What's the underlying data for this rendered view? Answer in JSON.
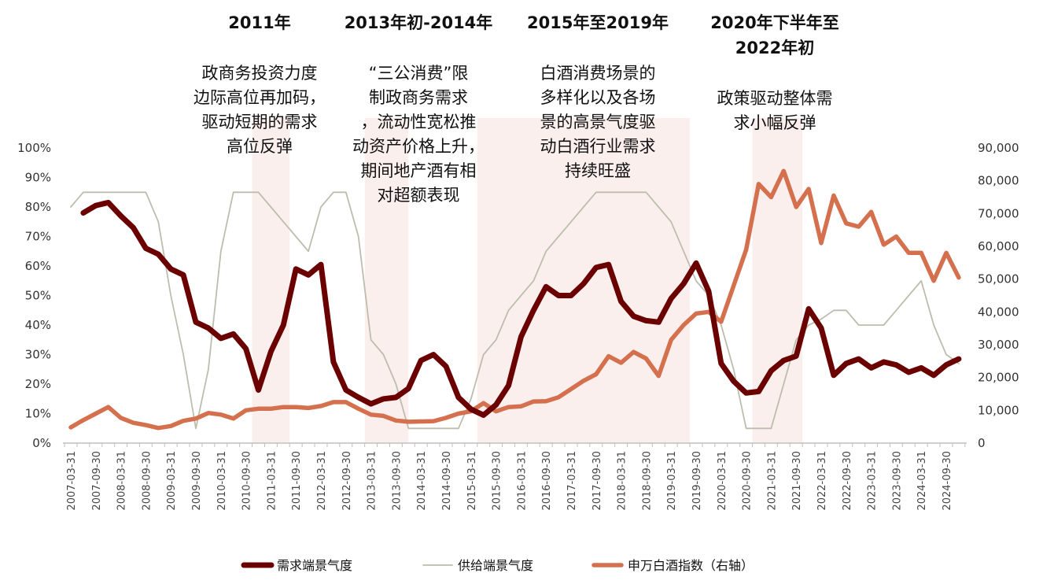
{
  "chart_data": {
    "type": "line",
    "title": "",
    "x_start": "2007-03-31",
    "x_frequency": "quarterly",
    "x_count": 72,
    "x_tick_labels": [
      "2007-03-31",
      "2007-09-30",
      "2008-03-31",
      "2008-09-30",
      "2009-03-31",
      "2009-09-30",
      "2010-03-31",
      "2010-09-30",
      "2011-03-31",
      "2011-09-30",
      "2012-03-31",
      "2012-09-30",
      "2013-03-31",
      "2013-09-30",
      "2014-03-31",
      "2014-09-30",
      "2015-03-31",
      "2015-09-30",
      "2016-03-31",
      "2016-09-30",
      "2017-03-31",
      "2017-09-30",
      "2018-03-31",
      "2018-09-30",
      "2019-03-31",
      "2019-09-30",
      "2020-03-31",
      "2020-09-30",
      "2021-03-31",
      "2021-09-30",
      "2022-03-31",
      "2022-09-30",
      "2023-03-31",
      "2023-09-30",
      "2024-03-31",
      "2024-09-30"
    ],
    "y_left": {
      "ylim": [
        0,
        100
      ],
      "tick_labels": [
        "0%",
        "10%",
        "20%",
        "30%",
        "40%",
        "50%",
        "60%",
        "70%",
        "80%",
        "90%",
        "100%"
      ]
    },
    "y_right": {
      "ylim": [
        0,
        90000
      ],
      "tick_labels": [
        "0",
        "10,000",
        "20,000",
        "30,000",
        "40,000",
        "50,000",
        "60,000",
        "70,000",
        "80,000",
        "90,000"
      ]
    },
    "grid": false,
    "legend_position": "bottom",
    "series": [
      {
        "name": "需求端景气度",
        "axis": "left",
        "color": "#6b0000",
        "values": [
          null,
          78,
          80.5,
          81.5,
          77,
          73,
          66,
          64,
          59,
          57,
          41,
          39,
          35.5,
          37,
          32,
          18,
          31,
          40,
          59,
          57,
          60.5,
          27.5,
          18,
          15.5,
          13.3,
          15,
          15.5,
          18.5,
          28,
          30,
          26,
          15.5,
          11.5,
          9.5,
          13,
          19.5,
          36,
          45,
          53,
          50,
          50,
          54,
          59.5,
          60.5,
          48,
          43,
          41.5,
          41,
          49,
          54,
          61,
          51.5,
          27,
          21,
          17,
          17.5,
          24.5,
          28,
          29.5,
          45.5,
          39,
          23,
          27,
          28.5,
          25.5,
          27.5,
          26.5,
          24,
          25.5,
          23,
          26.5,
          28.5
        ]
      },
      {
        "name": "供给端景气度",
        "axis": "left",
        "color": "#bdbdad",
        "values": [
          80,
          85,
          85,
          85,
          85,
          85,
          85,
          75,
          50,
          30,
          5,
          25,
          65,
          85,
          85,
          85,
          80,
          75,
          70,
          65,
          80,
          85,
          85,
          70,
          35,
          30,
          20,
          5,
          5,
          5,
          5,
          5,
          15,
          30,
          35,
          45,
          50,
          55,
          65,
          70,
          75,
          80,
          85,
          85,
          85,
          85,
          85,
          80,
          75,
          65,
          55,
          50,
          40,
          25,
          5,
          5,
          5,
          20,
          35,
          40,
          42,
          45,
          45,
          40,
          40,
          40,
          45,
          50,
          55,
          40,
          30,
          27
        ]
      },
      {
        "name": "申万白酒指数（右轴）",
        "axis": "right",
        "color": "#d4704e",
        "values": [
          4800,
          7000,
          9000,
          11000,
          7700,
          6200,
          5500,
          4600,
          5200,
          6800,
          7500,
          9200,
          8700,
          7500,
          10000,
          10500,
          10500,
          11000,
          11000,
          10700,
          11300,
          12500,
          12500,
          10500,
          8700,
          8300,
          6900,
          6500,
          6600,
          6700,
          7700,
          9000,
          9700,
          12200,
          9700,
          11000,
          11200,
          12700,
          12800,
          14000,
          16500,
          19000,
          21000,
          26500,
          24500,
          27800,
          25800,
          20500,
          31500,
          36000,
          39500,
          40000,
          37000,
          48000,
          59000,
          79000,
          75000,
          83000,
          72000,
          77500,
          61000,
          75500,
          67000,
          66000,
          70500,
          60500,
          63000,
          58000,
          58000,
          49500,
          58000,
          50500
        ]
      }
    ],
    "shaded_periods": [
      {
        "start_index": 15,
        "end_index": 17
      },
      {
        "start_index": 24,
        "end_index": 26.5
      },
      {
        "start_index": 33,
        "end_index": 49
      },
      {
        "start_index": 55,
        "end_index": 58
      }
    ],
    "annotations": [
      {
        "title": [
          "2011年"
        ],
        "body": [
          "政商务投资力度",
          "边际高位再加码，",
          "驱动短期的需求",
          "高位反弹"
        ]
      },
      {
        "title": [
          "2013年初-2014年"
        ],
        "body": [
          "“三公消费”限",
          "制政商务需求",
          "，流动性宽松推",
          "动资产价格上升，",
          "期间地产酒有相",
          "对超额表现"
        ]
      },
      {
        "title": [
          "2015年至2019年"
        ],
        "body": [
          "白酒消费场景的",
          "多样化以及各场",
          "景的高景气度驱",
          "动白酒行业需求",
          "持续旺盛"
        ]
      },
      {
        "title": [
          "2020年下半年至",
          "2022年初"
        ],
        "body": [
          "政策驱动整体需",
          "求小幅反弹"
        ]
      }
    ],
    "shade_color": "#fbefee",
    "axis_color": "#bfbfbf"
  }
}
